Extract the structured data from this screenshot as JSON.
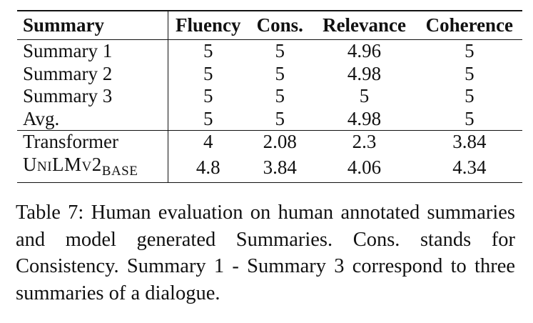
{
  "table": {
    "headers": [
      "Summary",
      "Fluency",
      "Cons.",
      "Relevance",
      "Coherence"
    ],
    "groups": [
      [
        {
          "label": "Summary 1",
          "values": [
            "5",
            "5",
            "4.96",
            "5"
          ]
        },
        {
          "label": "Summary 2",
          "values": [
            "5",
            "5",
            "4.98",
            "5"
          ]
        },
        {
          "label": "Summary 3",
          "values": [
            "5",
            "5",
            "5",
            "5"
          ]
        },
        {
          "label": "Avg.",
          "values": [
            "5",
            "5",
            "4.98",
            "5"
          ]
        }
      ],
      [
        {
          "label": "Transformer",
          "values": [
            "4",
            "2.08",
            "2.3",
            "3.84"
          ]
        },
        {
          "label": "UniLMv2",
          "label_sub": "BASE",
          "values": [
            "4.8",
            "3.84",
            "4.06",
            "4.34"
          ]
        }
      ]
    ]
  },
  "caption": "Table 7: Human evaluation on human annotated summaries and model generated Summaries. Cons. stands for Consistency. Summary 1 - Summary 3 correspond to three summaries of a dialogue."
}
